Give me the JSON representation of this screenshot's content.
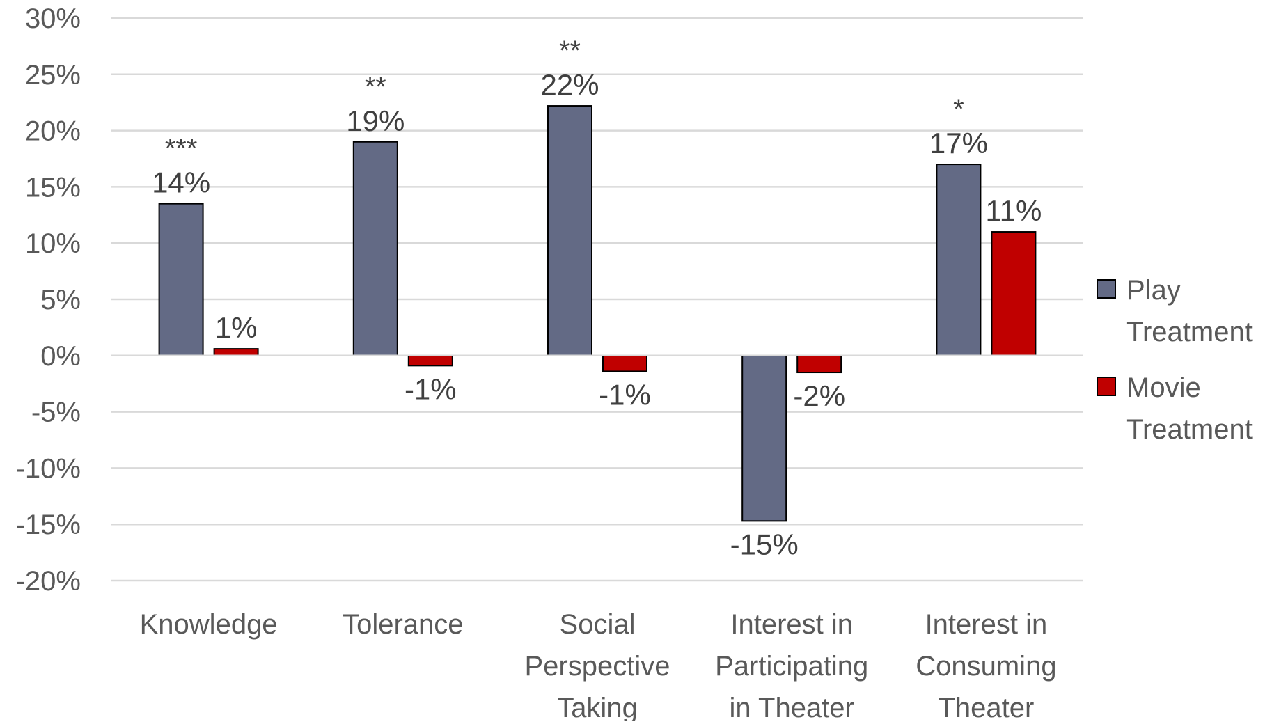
{
  "chart_data": {
    "type": "bar",
    "categories": [
      [
        "Knowledge"
      ],
      [
        "Tolerance"
      ],
      [
        "Social",
        "Perspective",
        "Taking"
      ],
      [
        "Interest in",
        "Participating",
        "in Theater"
      ],
      [
        "Interest in",
        "Consuming",
        "Theater"
      ]
    ],
    "series": [
      {
        "name": "Play Treatment",
        "legend_lines": [
          "Play",
          "Treatment"
        ],
        "color": "#636a85",
        "values": [
          13.5,
          19.0,
          22.2,
          -14.7,
          17.0
        ],
        "labels": [
          "14%",
          "19%",
          "22%",
          "-15%",
          "17%"
        ],
        "significance": [
          "***",
          "**",
          "**",
          "",
          "*"
        ]
      },
      {
        "name": "Movie Treatment",
        "legend_lines": [
          "Movie",
          "Treatment"
        ],
        "color": "#c00000",
        "values": [
          0.6,
          -0.9,
          -1.4,
          -1.5,
          11.0
        ],
        "labels": [
          "1%",
          "-1%",
          "-1%",
          "-2%",
          "11%"
        ]
      }
    ],
    "ylim": [
      -20,
      30
    ],
    "yticks": [
      30,
      25,
      20,
      15,
      10,
      5,
      0,
      -5,
      -10,
      -15,
      -20
    ],
    "ytick_labels": [
      "30%",
      "25%",
      "20%",
      "15%",
      "10%",
      "5%",
      "0%",
      "-5%",
      "-10%",
      "-15%",
      "-20%"
    ],
    "grid": true,
    "legend_position": "right",
    "title": "",
    "xlabel": "",
    "ylabel": ""
  }
}
